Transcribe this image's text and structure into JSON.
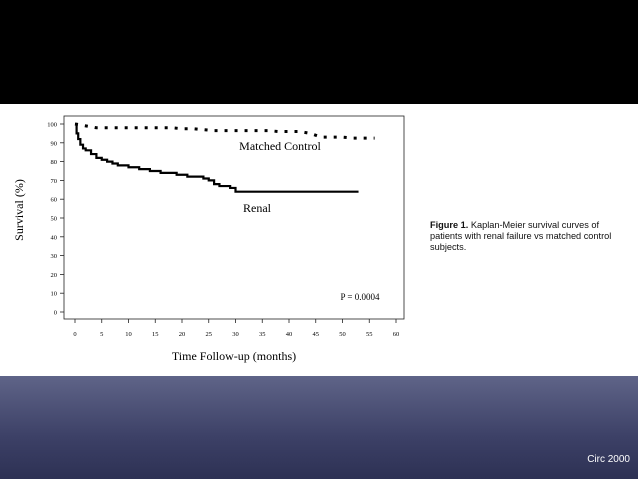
{
  "slide": {
    "citation": "Circ 2000",
    "caption_label": "Figure 1.",
    "caption_text": "Kaplan-Meier survival curves of patients with renal failure vs matched control subjects."
  },
  "chart_data": {
    "type": "line",
    "title": "",
    "xlabel": "Time Follow-up (months)",
    "ylabel": "Survival (%)",
    "xlim": [
      0,
      60
    ],
    "ylim": [
      0,
      100
    ],
    "xticks": [
      0,
      5,
      10,
      15,
      20,
      25,
      30,
      35,
      40,
      45,
      50,
      55,
      60
    ],
    "yticks": [
      0,
      10,
      20,
      30,
      40,
      50,
      60,
      70,
      80,
      90,
      100
    ],
    "grid": false,
    "annotation": "P = 0.0004",
    "series": [
      {
        "name": "Matched Control",
        "style": "dotted",
        "x": [
          0,
          2,
          4,
          6,
          8,
          10,
          12,
          14,
          16,
          18,
          20,
          22,
          24,
          26,
          28,
          30,
          32,
          34,
          36,
          38,
          40,
          42,
          44,
          46,
          48,
          50,
          52,
          54,
          56
        ],
        "y": [
          100,
          99,
          98,
          98,
          98,
          98,
          98,
          98,
          98,
          98,
          97.5,
          97.5,
          97,
          96.5,
          96.5,
          96.5,
          96.5,
          96.5,
          96.5,
          96,
          96,
          96,
          95,
          93,
          93,
          93,
          92.5,
          92.5,
          92.5
        ]
      },
      {
        "name": "Renal",
        "style": "solid",
        "x": [
          0,
          0.3,
          0.6,
          1,
          1.5,
          2,
          3,
          4,
          5,
          6,
          7,
          8,
          9,
          10,
          11,
          12,
          13,
          14,
          15,
          16,
          17,
          18,
          19,
          20,
          21,
          22,
          23,
          24,
          25,
          26,
          27,
          28,
          29,
          30,
          35,
          40,
          45,
          50,
          53
        ],
        "y": [
          100,
          95,
          92,
          89,
          87,
          86,
          84,
          82,
          81,
          80,
          79,
          78,
          78,
          77,
          77,
          76,
          76,
          75,
          75,
          74,
          74,
          74,
          73,
          73,
          72,
          72,
          72,
          71,
          70,
          68,
          67,
          67,
          66,
          64,
          64,
          64,
          64,
          64,
          64
        ]
      }
    ]
  }
}
